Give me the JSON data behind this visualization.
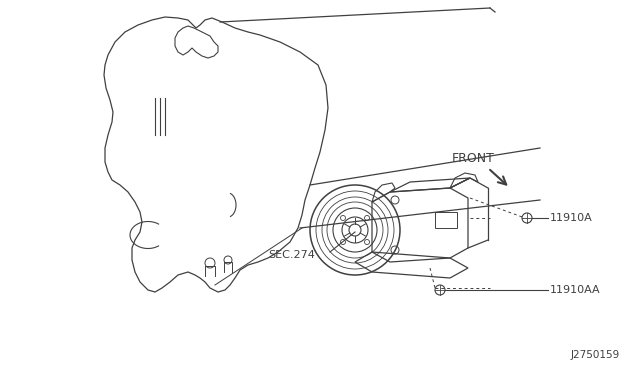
{
  "bg_color": "#ffffff",
  "line_color": "#404040",
  "text_color": "#404040",
  "part_id": "J2750159",
  "front_label": "FRONT",
  "sec_label": "SEC.274",
  "label1": "11910A",
  "label2": "11910AA",
  "fig_width": 6.4,
  "fig_height": 3.72
}
